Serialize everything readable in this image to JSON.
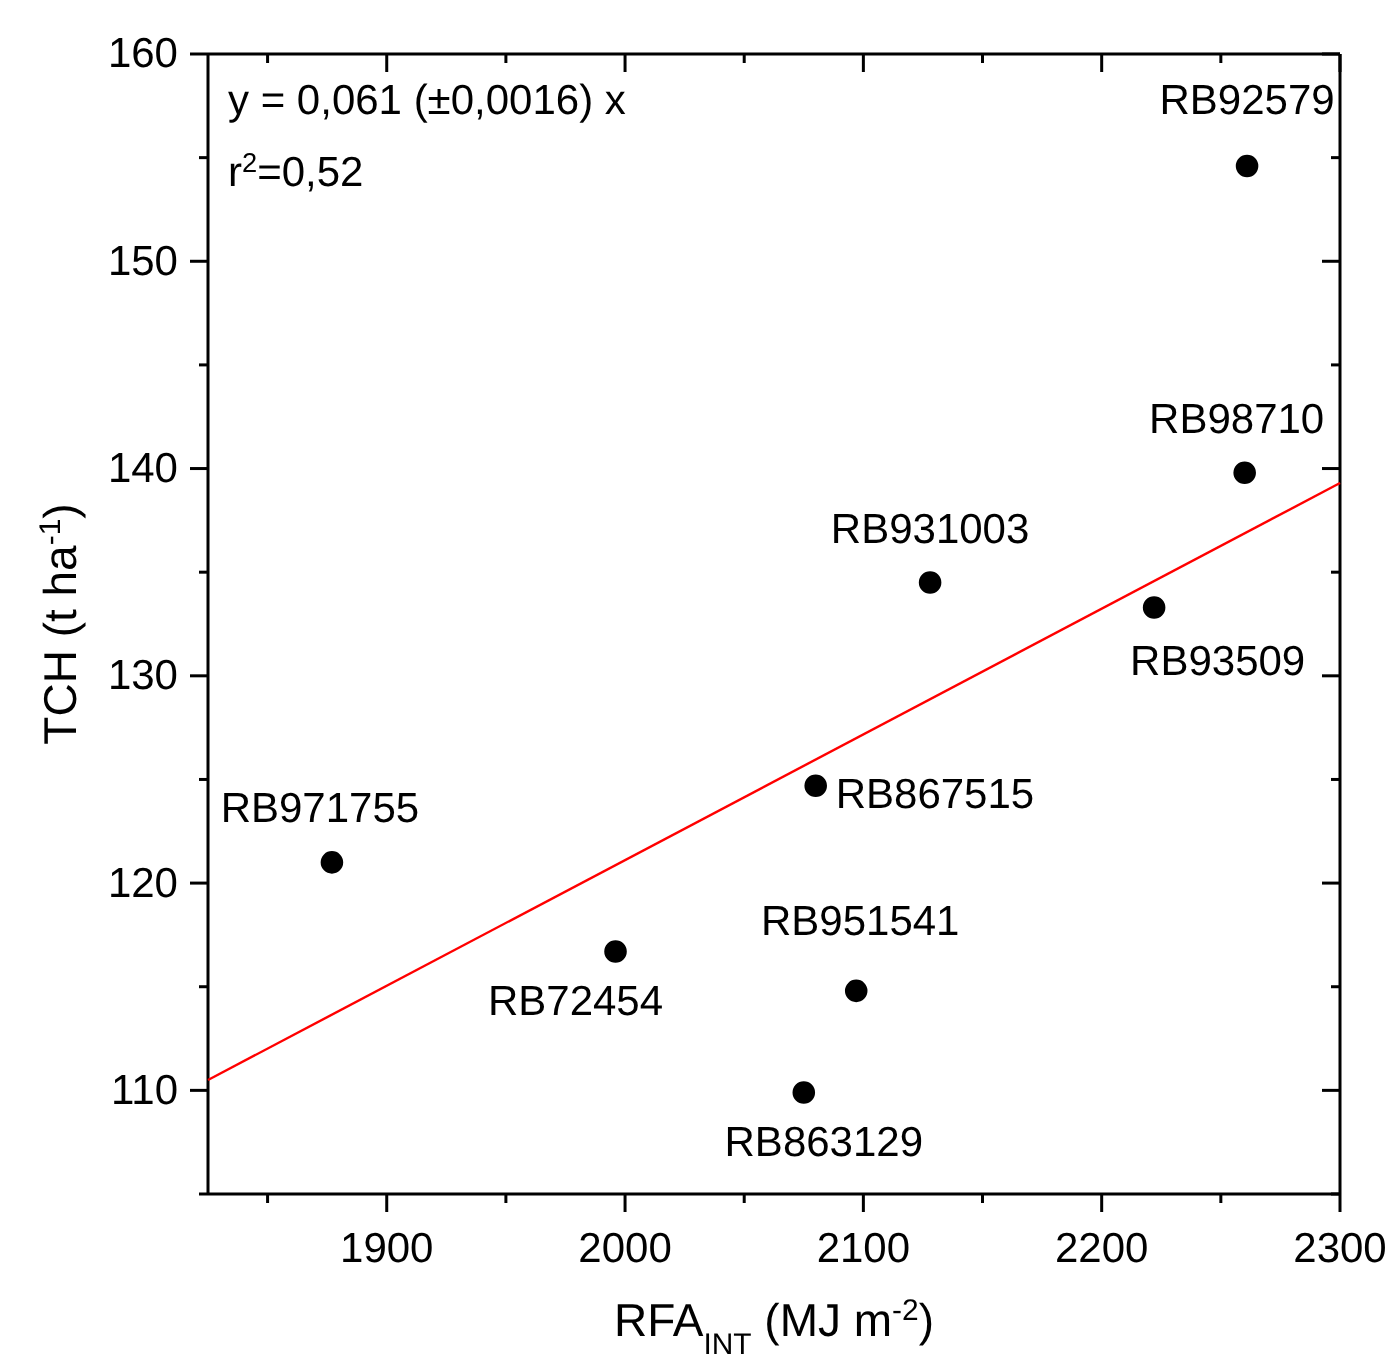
{
  "chart_data": {
    "type": "scatter",
    "xlabel": "RFA$_{INT}$ (MJ m$^{-2}$)",
    "ylabel": "TCH (t ha$^{-1}$)",
    "xlim": [
      1825,
      2300
    ],
    "ylim": [
      105,
      160
    ],
    "xticks": [
      {
        "value": 1850,
        "label": null
      },
      1900,
      {
        "value": 1950,
        "label": null
      },
      2000,
      {
        "value": 2050,
        "label": null
      },
      2100,
      {
        "value": 2150,
        "label": null
      },
      2200,
      {
        "value": 2250,
        "label": null
      },
      2300
    ],
    "yticks": [
      {
        "value": 105,
        "label": null
      },
      110,
      {
        "value": 115,
        "label": null
      },
      120,
      {
        "value": 125,
        "label": null
      },
      130,
      {
        "value": 135,
        "label": null
      },
      140,
      {
        "value": 145,
        "label": null
      },
      150,
      {
        "value": 155,
        "label": null
      },
      160
    ],
    "marker": "circle",
    "grid": false,
    "series": [
      {
        "color": "#000000",
        "x": [
          2261,
          2260,
          2128,
          2222,
          2080,
          1877,
          1996,
          2097,
          2075
        ],
        "values": [
          154.6,
          139.8,
          134.5,
          133.3,
          124.7,
          121.0,
          116.7,
          114.8,
          109.9
        ]
      },
      {
        "type": "line",
        "color": "#ff0000",
        "x": [
          1825,
          2300
        ],
        "values": [
          110.5,
          139.3
        ],
        "marker": "none"
      }
    ],
    "annotations": [
      "y = 0,061 (±0,0016) x",
      "r$^{2}$=0,52",
      {
        "text": "RB92579",
        "x": 2261,
        "y": 154.6
      },
      {
        "text": "RB98710",
        "x": 2260,
        "y": 139.8
      },
      {
        "text": "RB931003",
        "x": 2128,
        "y": 134.5
      },
      {
        "text": "RB93509",
        "x": 2222,
        "y": 133.3
      },
      {
        "text": "RB867515",
        "x": 2080,
        "y": 124.7
      },
      {
        "text": "RB971755",
        "x": 1877,
        "y": 121.0
      },
      {
        "text": "RB72454",
        "x": 1996,
        "y": 116.7
      },
      {
        "text": "RB951541",
        "x": 2097,
        "y": 114.8
      },
      {
        "text": "RB863129",
        "x": 2075,
        "y": 109.9
      }
    ]
  }
}
